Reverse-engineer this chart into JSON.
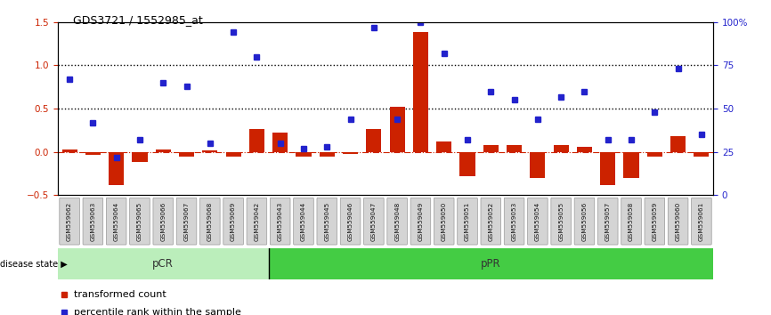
{
  "title": "GDS3721 / 1552985_at",
  "categories": [
    "GSM559062",
    "GSM559063",
    "GSM559064",
    "GSM559065",
    "GSM559066",
    "GSM559067",
    "GSM559068",
    "GSM559069",
    "GSM559042",
    "GSM559043",
    "GSM559044",
    "GSM559045",
    "GSM559046",
    "GSM559047",
    "GSM559048",
    "GSM559049",
    "GSM559050",
    "GSM559051",
    "GSM559052",
    "GSM559053",
    "GSM559054",
    "GSM559055",
    "GSM559056",
    "GSM559057",
    "GSM559058",
    "GSM559059",
    "GSM559060",
    "GSM559061"
  ],
  "transformed_count": [
    0.03,
    -0.03,
    -0.38,
    -0.12,
    0.03,
    -0.05,
    0.02,
    -0.05,
    0.27,
    0.22,
    -0.05,
    -0.05,
    -0.02,
    0.27,
    0.52,
    1.38,
    0.12,
    -0.28,
    0.08,
    0.08,
    -0.3,
    0.08,
    0.06,
    -0.38,
    -0.3,
    -0.05,
    0.18,
    -0.05
  ],
  "percentile_rank_pct": [
    67,
    42,
    22,
    32,
    65,
    63,
    30,
    94,
    80,
    30,
    27,
    28,
    44,
    97,
    44,
    100,
    82,
    32,
    60,
    55,
    44,
    57,
    60,
    32,
    32,
    48,
    73,
    35
  ],
  "pCR_count": 9,
  "pPR_count": 19,
  "bar_color": "#cc2200",
  "scatter_color": "#2222cc",
  "hline_color": "#cc2200",
  "dotted_color": "#000000",
  "ylim_left": [
    -0.5,
    1.5
  ],
  "ylim_right": [
    0,
    100
  ],
  "yticks_left": [
    -0.5,
    0.0,
    0.5,
    1.0,
    1.5
  ],
  "yticks_right": [
    0,
    25,
    50,
    75,
    100
  ],
  "pCR_color": "#bbeebb",
  "pPR_color": "#44cc44",
  "legend_tc": "transformed count",
  "legend_pr": "percentile rank within the sample"
}
